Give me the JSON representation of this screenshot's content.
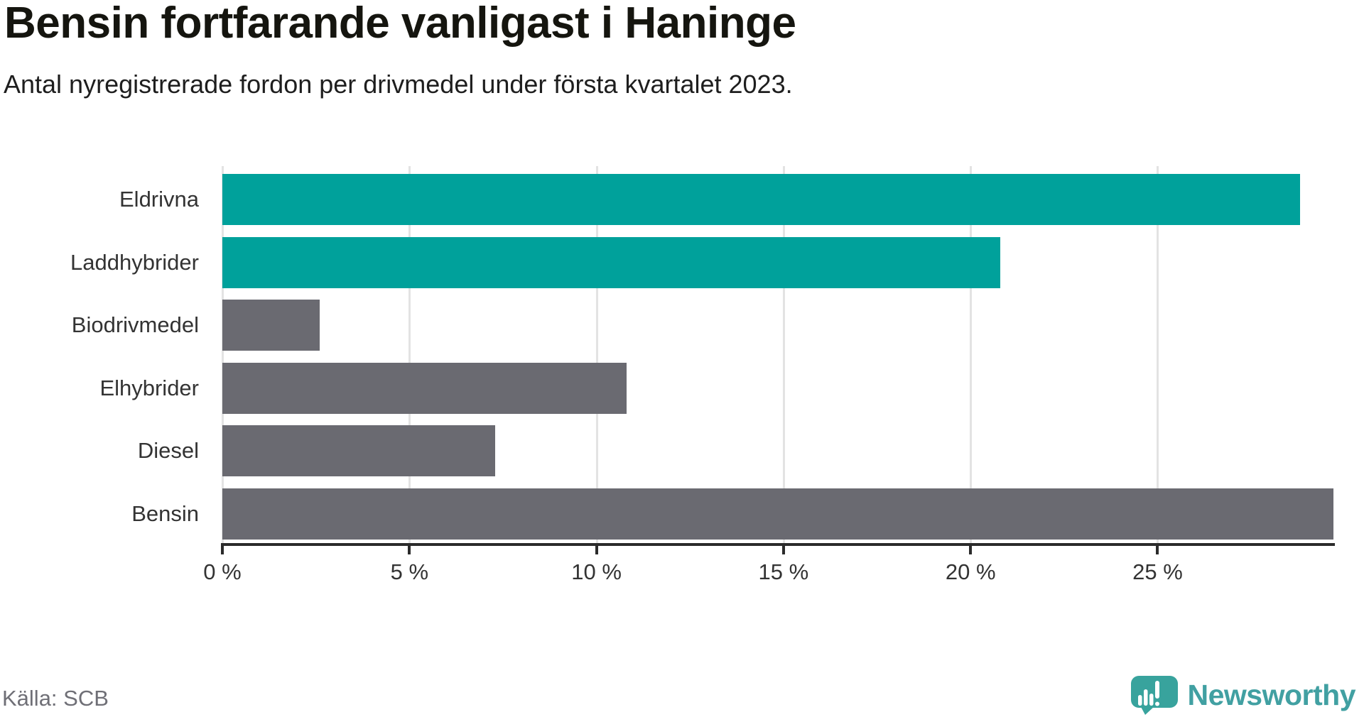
{
  "header": {
    "title": "Bensin fortfarande vanligast i Haninge",
    "subtitle": "Antal nyregistrerade fordon per drivmedel under första kvartalet 2023."
  },
  "chart_data": {
    "type": "bar",
    "orientation": "horizontal",
    "title": "Bensin fortfarande vanligast i Haninge",
    "subtitle": "Antal nyregistrerade fordon per drivmedel under första kvartalet 2023.",
    "categories": [
      "Eldrivna",
      "Laddhybrider",
      "Biodrivmedel",
      "Elhybrider",
      "Diesel",
      "Bensin"
    ],
    "values": [
      28.8,
      20.8,
      2.6,
      10.8,
      7.3,
      29.7
    ],
    "unit": "%",
    "bar_colors": [
      "#00a19b",
      "#00a19b",
      "#6a6a71",
      "#6a6a71",
      "#6a6a71",
      "#6a6a71"
    ],
    "xlabel": "",
    "ylabel": "",
    "xlim": [
      0,
      29.7
    ],
    "xticks": [
      0,
      5,
      10,
      15,
      20,
      25
    ],
    "xtick_labels": [
      "0 %",
      "5 %",
      "10 %",
      "15 %",
      "20 %",
      "25 %"
    ],
    "grid": "vertical-only",
    "legend": "none"
  },
  "footer": {
    "source": "Källa: SCB",
    "brand": "Newsworthy"
  },
  "colors": {
    "accent_teal": "#00a19b",
    "bar_gray": "#6a6a71",
    "gridline": "#e3e3e3",
    "axis": "#2b2b2b",
    "logo_teal": "#38a39d",
    "brand_text_teal": "#41a0a2"
  },
  "icons": {
    "brand_icon": "newsworthy-speech-bubble-chart-icon"
  }
}
